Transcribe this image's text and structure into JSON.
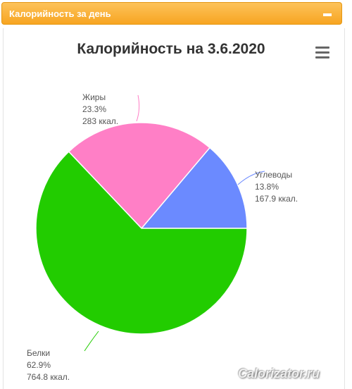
{
  "panel": {
    "title": "Калорийность за день"
  },
  "chart_data": {
    "type": "pie",
    "title": "Калорийность на 3.6.2020",
    "slices": [
      {
        "name": "Углеводы",
        "percent": "13.8%",
        "value": 167.9,
        "value_label": "167.9 ккал.",
        "color": "#6b8aff"
      },
      {
        "name": "Жиры",
        "percent": "23.3%",
        "value": 283,
        "value_label": "283 ккал.",
        "color": "#ff7fc6"
      },
      {
        "name": "Белки",
        "percent": "62.9%",
        "value": 764.8,
        "value_label": "764.8 ккал.",
        "color": "#22cc00"
      }
    ]
  },
  "watermark": "Calorizator.ru"
}
